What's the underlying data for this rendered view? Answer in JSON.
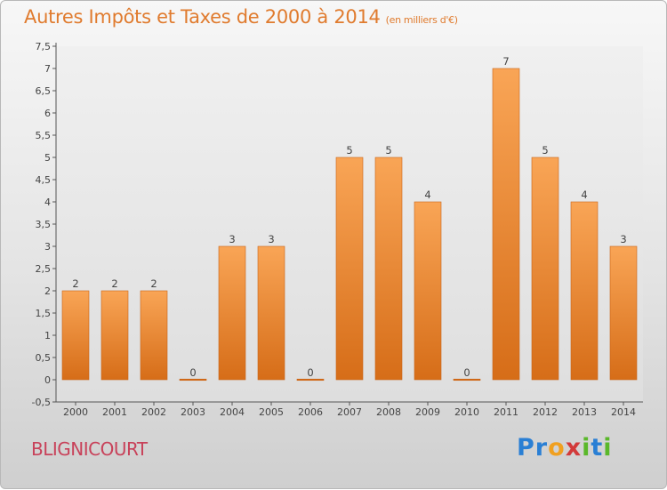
{
  "header": {
    "title": "Autres Impôts et Taxes de 2000 à 2014",
    "unit": "(en milliers d'€)"
  },
  "footer": {
    "city": "BLIGNICOURT",
    "brand_letters": [
      {
        "ch": "P",
        "color": "#2a7fd4"
      },
      {
        "ch": "r",
        "color": "#2a7fd4"
      },
      {
        "ch": "o",
        "color": "#f0a020"
      },
      {
        "ch": "x",
        "color": "#d23a3a"
      },
      {
        "ch": "i",
        "color": "#5ab82a"
      },
      {
        "ch": "t",
        "color": "#2a7fd4"
      },
      {
        "ch": "i",
        "color": "#5ab82a"
      }
    ]
  },
  "chart_data": {
    "type": "bar",
    "title": "Autres Impôts et Taxes de 2000 à 2014",
    "subtitle": "(en milliers d'€)",
    "xlabel": "",
    "ylabel": "",
    "categories": [
      "2000",
      "2001",
      "2002",
      "2003",
      "2004",
      "2005",
      "2006",
      "2007",
      "2008",
      "2009",
      "2010",
      "2011",
      "2012",
      "2013",
      "2014"
    ],
    "values": [
      2,
      2,
      2,
      0,
      3,
      3,
      0,
      5,
      5,
      4,
      0,
      7,
      5,
      4,
      3
    ],
    "data_labels": [
      "2",
      "2",
      "2",
      "0",
      "3",
      "3",
      "0",
      "5",
      "5",
      "4",
      "0",
      "7",
      "5",
      "4",
      "3"
    ],
    "ylim": [
      -0.5,
      7.5
    ],
    "yticks": [
      -0.5,
      0,
      0.5,
      1,
      1.5,
      2,
      2.5,
      3,
      3.5,
      4,
      4.5,
      5,
      5.5,
      6,
      6.5,
      7,
      7.5
    ],
    "ytick_labels": [
      "-0,5",
      "0",
      "0,5",
      "1",
      "1,5",
      "2",
      "2,5",
      "3",
      "3,5",
      "4",
      "4,5",
      "5",
      "5,5",
      "6",
      "6,5",
      "7",
      "7,5"
    ],
    "grid": false,
    "bar_color": "#e8822f"
  }
}
